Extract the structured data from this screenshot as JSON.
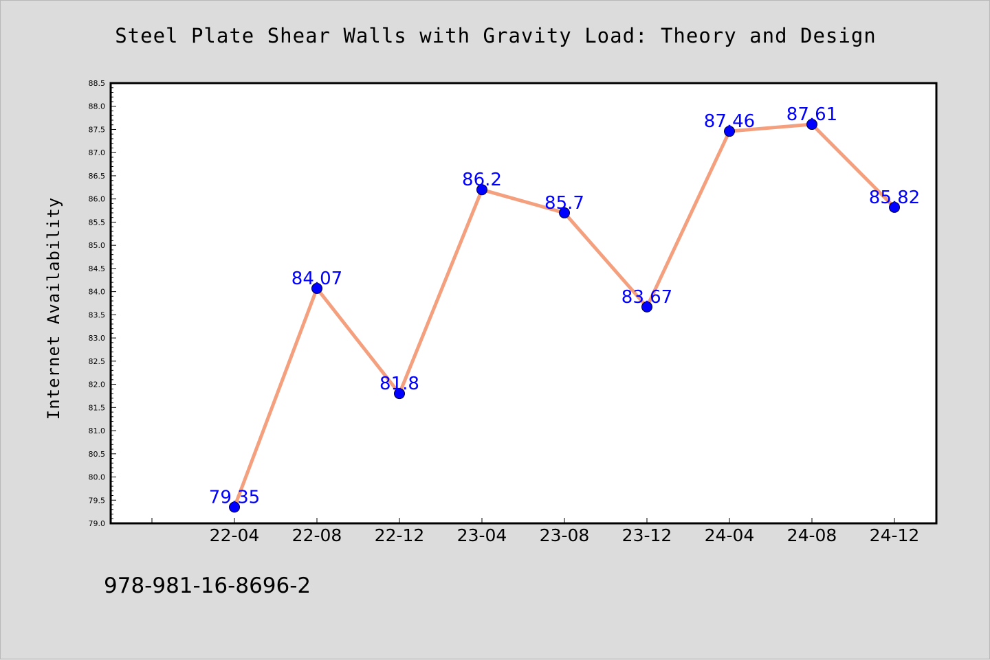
{
  "chart_data": {
    "type": "line",
    "title": "Steel Plate Shear Walls with Gravity Load: Theory and Design",
    "xlabel": "",
    "ylabel": "Internet Availability",
    "categories": [
      "22-04",
      "22-08",
      "22-12",
      "23-04",
      "23-08",
      "23-12",
      "24-04",
      "24-08",
      "24-12"
    ],
    "series": [
      {
        "values": [
          79.35,
          84.07,
          81.8,
          86.2,
          85.7,
          83.67,
          87.46,
          87.61,
          85.82
        ]
      }
    ],
    "ylim": [
      79.0,
      88.5
    ],
    "yticks": [
      "79.0",
      "79.5",
      "80.0",
      "80.5",
      "81.0",
      "81.5",
      "82.0",
      "82.5",
      "83.0",
      "83.5",
      "84.0",
      "84.5",
      "85.0",
      "85.5",
      "86.0",
      "86.5",
      "87.0",
      "87.5",
      "88.0",
      "88.5"
    ],
    "data_labels": [
      "79.35",
      "84.07",
      "81.8",
      "86.2",
      "85.7",
      "83.67",
      "87.46",
      "87.61",
      "85.82"
    ],
    "line_color": "#f4a07e",
    "marker_color": "#0000ff",
    "label_color": "#0000ff",
    "grid": false,
    "legend": "none"
  },
  "footnote": "978-981-16-8696-2"
}
